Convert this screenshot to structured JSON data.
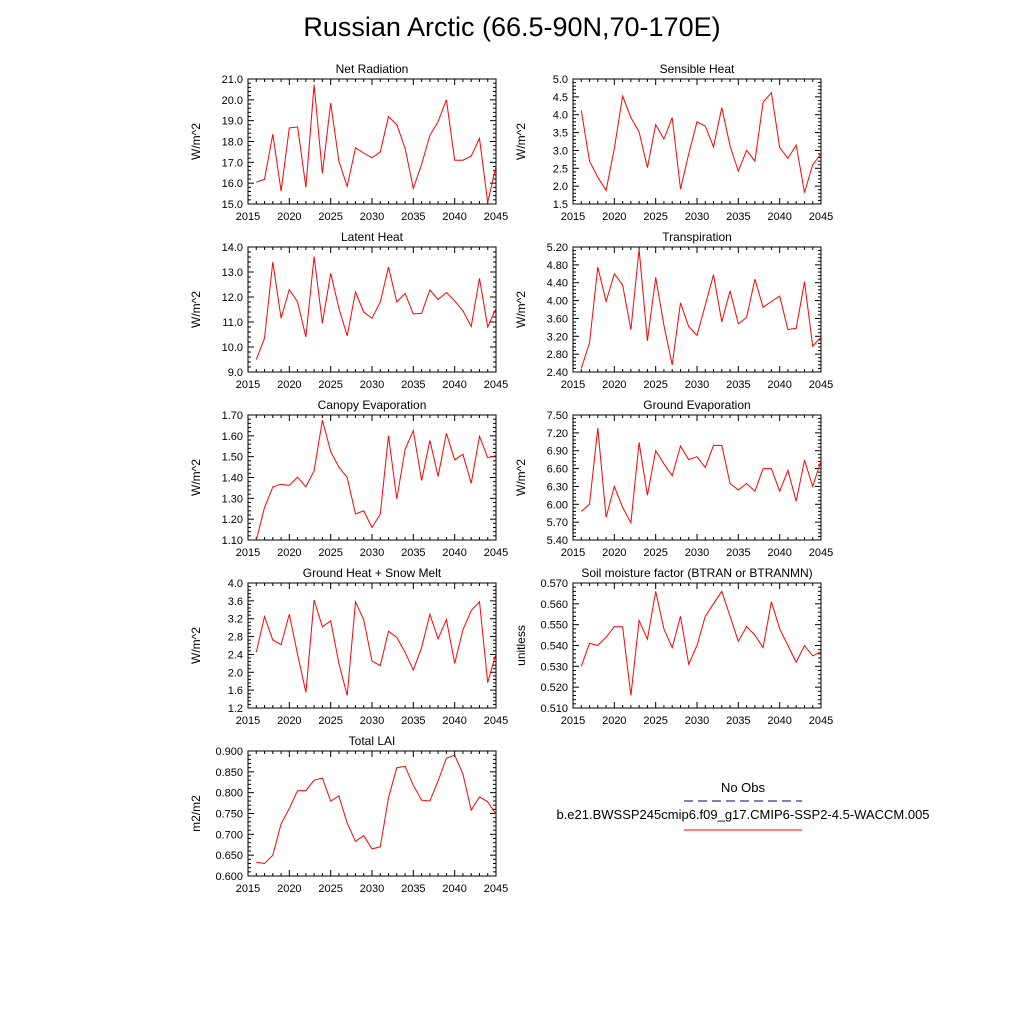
{
  "figure": {
    "title": "Russian Arctic (66.5-90N,70-170E)"
  },
  "legend": {
    "obs_label": "No Obs",
    "model_label": "b.e21.BWSSP245cmip6.f09_g17.CMIP6-SSP2-4.5-WACCM.005",
    "obs_color": "#00007f",
    "model_color": "#ff0000"
  },
  "chart_data": [
    {
      "type": "line",
      "title": "Net Radiation",
      "ylabel": "W/m^2",
      "xlim": [
        2015,
        2045
      ],
      "ylim": [
        15.0,
        21.0
      ],
      "xticks": [
        "2015",
        "2020",
        "2025",
        "2030",
        "2035",
        "2040",
        "2045"
      ],
      "yticks": [
        "15.0",
        "16.0",
        "17.0",
        "18.0",
        "19.0",
        "20.0",
        "21.0"
      ],
      "x": [
        2016,
        2017,
        2018,
        2019,
        2020,
        2021,
        2022,
        2023,
        2024,
        2025,
        2026,
        2027,
        2028,
        2029,
        2030,
        2031,
        2032,
        2033,
        2034,
        2035,
        2036,
        2037,
        2038,
        2039,
        2040,
        2041,
        2042,
        2043,
        2044,
        2045
      ],
      "series": [
        {
          "color": "#ff0000",
          "values": [
            16.05,
            16.18,
            18.35,
            15.62,
            18.65,
            18.7,
            15.8,
            20.72,
            16.48,
            19.85,
            17.05,
            15.85,
            17.7,
            17.45,
            17.22,
            17.5,
            19.2,
            18.8,
            17.68,
            15.75,
            16.9,
            18.3,
            18.95,
            20.0,
            17.1,
            17.1,
            17.3,
            18.15,
            15.08,
            16.8
          ]
        }
      ]
    },
    {
      "type": "line",
      "title": "Sensible Heat",
      "ylabel": "W/m^2",
      "xlim": [
        2015,
        2045
      ],
      "ylim": [
        1.5,
        5.0
      ],
      "xticks": [
        "2015",
        "2020",
        "2025",
        "2030",
        "2035",
        "2040",
        "2045"
      ],
      "yticks": [
        "1.5",
        "2.0",
        "2.5",
        "3.0",
        "3.5",
        "4.0",
        "4.5",
        "5.0"
      ],
      "x": [
        2016,
        2017,
        2018,
        2019,
        2020,
        2021,
        2022,
        2023,
        2024,
        2025,
        2026,
        2027,
        2028,
        2029,
        2030,
        2031,
        2032,
        2033,
        2034,
        2035,
        2036,
        2037,
        2038,
        2039,
        2040,
        2041,
        2042,
        2043,
        2044,
        2045
      ],
      "series": [
        {
          "color": "#ff0000",
          "values": [
            4.12,
            2.7,
            2.25,
            1.88,
            3.05,
            4.52,
            3.92,
            3.52,
            2.52,
            3.72,
            3.32,
            3.92,
            1.92,
            2.9,
            3.8,
            3.68,
            3.1,
            4.2,
            3.12,
            2.42,
            3.0,
            2.7,
            4.35,
            4.62,
            3.08,
            2.78,
            3.15,
            1.82,
            2.6,
            2.9
          ]
        }
      ]
    },
    {
      "type": "line",
      "title": "Latent Heat",
      "ylabel": "W/m^2",
      "xlim": [
        2015,
        2045
      ],
      "ylim": [
        9.0,
        14.0
      ],
      "xticks": [
        "2015",
        "2020",
        "2025",
        "2030",
        "2035",
        "2040",
        "2045"
      ],
      "yticks": [
        "9.0",
        "10.0",
        "11.0",
        "12.0",
        "13.0",
        "14.0"
      ],
      "x": [
        2016,
        2017,
        2018,
        2019,
        2020,
        2021,
        2022,
        2023,
        2024,
        2025,
        2026,
        2027,
        2028,
        2029,
        2030,
        2031,
        2032,
        2033,
        2034,
        2035,
        2036,
        2037,
        2038,
        2039,
        2040,
        2041,
        2042,
        2043,
        2044,
        2045
      ],
      "series": [
        {
          "color": "#ff0000",
          "values": [
            9.5,
            10.35,
            13.4,
            11.15,
            12.3,
            11.8,
            10.4,
            13.62,
            10.95,
            12.95,
            11.55,
            10.45,
            12.2,
            11.4,
            11.15,
            11.8,
            13.2,
            11.8,
            12.15,
            11.32,
            11.35,
            12.28,
            11.9,
            12.18,
            11.85,
            11.45,
            10.82,
            12.75,
            10.8,
            11.55
          ]
        }
      ]
    },
    {
      "type": "line",
      "title": "Transpiration",
      "ylabel": "W/m^2",
      "xlim": [
        2015,
        2045
      ],
      "ylim": [
        2.4,
        5.2
      ],
      "xticks": [
        "2015",
        "2020",
        "2025",
        "2030",
        "2035",
        "2040",
        "2045"
      ],
      "yticks": [
        "2.40",
        "2.80",
        "3.20",
        "3.60",
        "4.00",
        "4.40",
        "4.80",
        "5.20"
      ],
      "x": [
        2016,
        2017,
        2018,
        2019,
        2020,
        2021,
        2022,
        2023,
        2024,
        2025,
        2026,
        2027,
        2028,
        2029,
        2030,
        2031,
        2032,
        2033,
        2034,
        2035,
        2036,
        2037,
        2038,
        2039,
        2040,
        2041,
        2042,
        2043,
        2044,
        2045
      ],
      "series": [
        {
          "color": "#ff0000",
          "values": [
            2.48,
            3.05,
            4.75,
            3.98,
            4.6,
            4.35,
            3.35,
            5.15,
            3.1,
            4.52,
            3.45,
            2.56,
            3.95,
            3.42,
            3.22,
            3.9,
            4.58,
            3.52,
            4.22,
            3.48,
            3.62,
            4.48,
            3.85,
            3.98,
            4.1,
            3.35,
            3.38,
            4.42,
            2.98,
            3.18
          ]
        }
      ]
    },
    {
      "type": "line",
      "title": "Canopy Evaporation",
      "ylabel": "W/m^2",
      "xlim": [
        2015,
        2045
      ],
      "ylim": [
        1.1,
        1.7
      ],
      "xticks": [
        "2015",
        "2020",
        "2025",
        "2030",
        "2035",
        "2040",
        "2045"
      ],
      "yticks": [
        "1.10",
        "1.20",
        "1.30",
        "1.40",
        "1.50",
        "1.60",
        "1.70"
      ],
      "x": [
        2016,
        2017,
        2018,
        2019,
        2020,
        2021,
        2022,
        2023,
        2024,
        2025,
        2026,
        2027,
        2028,
        2029,
        2030,
        2031,
        2032,
        2033,
        2034,
        2035,
        2036,
        2037,
        2038,
        2039,
        2040,
        2041,
        2042,
        2043,
        2044,
        2045
      ],
      "series": [
        {
          "color": "#ff0000",
          "values": [
            1.1,
            1.255,
            1.355,
            1.368,
            1.362,
            1.402,
            1.355,
            1.432,
            1.675,
            1.525,
            1.45,
            1.4,
            1.225,
            1.24,
            1.16,
            1.225,
            1.6,
            1.298,
            1.535,
            1.625,
            1.385,
            1.578,
            1.405,
            1.612,
            1.485,
            1.512,
            1.372,
            1.598,
            1.495,
            1.505
          ]
        }
      ]
    },
    {
      "type": "line",
      "title": "Ground Evaporation",
      "ylabel": "W/m^2",
      "xlim": [
        2015,
        2045
      ],
      "ylim": [
        5.4,
        7.5
      ],
      "xticks": [
        "2015",
        "2020",
        "2025",
        "2030",
        "2035",
        "2040",
        "2045"
      ],
      "yticks": [
        "5.40",
        "5.70",
        "6.00",
        "6.30",
        "6.60",
        "6.90",
        "7.20",
        "7.50"
      ],
      "x": [
        2016,
        2017,
        2018,
        2019,
        2020,
        2021,
        2022,
        2023,
        2024,
        2025,
        2026,
        2027,
        2028,
        2029,
        2030,
        2031,
        2032,
        2033,
        2034,
        2035,
        2036,
        2037,
        2038,
        2039,
        2040,
        2041,
        2042,
        2043,
        2044,
        2045
      ],
      "series": [
        {
          "color": "#ff0000",
          "values": [
            5.88,
            6.0,
            7.28,
            5.78,
            6.3,
            5.95,
            5.69,
            7.04,
            6.15,
            6.9,
            6.68,
            6.48,
            6.98,
            6.75,
            6.8,
            6.62,
            6.99,
            6.99,
            6.35,
            6.24,
            6.35,
            6.22,
            6.6,
            6.6,
            6.22,
            6.57,
            6.05,
            6.74,
            6.3,
            6.73
          ]
        }
      ]
    },
    {
      "type": "line",
      "title": "Ground Heat + Snow Melt",
      "ylabel": "W/m^2",
      "xlim": [
        2015,
        2045
      ],
      "ylim": [
        1.2,
        4.0
      ],
      "xticks": [
        "2015",
        "2020",
        "2025",
        "2030",
        "2035",
        "2040",
        "2045"
      ],
      "yticks": [
        "1.2",
        "1.6",
        "2.0",
        "2.4",
        "2.8",
        "3.2",
        "3.6",
        "4.0"
      ],
      "x": [
        2016,
        2017,
        2018,
        2019,
        2020,
        2021,
        2022,
        2023,
        2024,
        2025,
        2026,
        2027,
        2028,
        2029,
        2030,
        2031,
        2032,
        2033,
        2034,
        2035,
        2036,
        2037,
        2038,
        2039,
        2040,
        2041,
        2042,
        2043,
        2044,
        2045
      ],
      "series": [
        {
          "color": "#ff0000",
          "values": [
            2.45,
            3.25,
            2.72,
            2.62,
            3.3,
            2.4,
            1.55,
            3.62,
            3.02,
            3.15,
            2.2,
            1.48,
            3.58,
            3.18,
            2.25,
            2.15,
            2.92,
            2.78,
            2.45,
            2.05,
            2.55,
            3.3,
            2.75,
            3.18,
            2.2,
            2.95,
            3.38,
            3.58,
            1.77,
            2.42
          ]
        }
      ]
    },
    {
      "type": "line",
      "title": "Soil moisture factor (BTRAN or BTRANMN)",
      "ylabel": "unitless",
      "xlim": [
        2015,
        2045
      ],
      "ylim": [
        0.51,
        0.57
      ],
      "xticks": [
        "2015",
        "2020",
        "2025",
        "2030",
        "2035",
        "2040",
        "2045"
      ],
      "yticks": [
        "0.510",
        "0.520",
        "0.530",
        "0.540",
        "0.550",
        "0.560",
        "0.570"
      ],
      "x": [
        2016,
        2017,
        2018,
        2019,
        2020,
        2021,
        2022,
        2023,
        2024,
        2025,
        2026,
        2027,
        2028,
        2029,
        2030,
        2031,
        2032,
        2033,
        2034,
        2035,
        2036,
        2037,
        2038,
        2039,
        2040,
        2041,
        2042,
        2043,
        2044,
        2045
      ],
      "series": [
        {
          "color": "#ff0000",
          "values": [
            0.53,
            0.541,
            0.54,
            0.544,
            0.549,
            0.549,
            0.516,
            0.552,
            0.543,
            0.566,
            0.548,
            0.539,
            0.554,
            0.531,
            0.54,
            0.554,
            0.56,
            0.566,
            0.554,
            0.542,
            0.549,
            0.545,
            0.539,
            0.561,
            0.548,
            0.54,
            0.532,
            0.54,
            0.535,
            0.537
          ]
        }
      ]
    },
    {
      "type": "line",
      "title": "Total LAI",
      "ylabel": "m2/m2",
      "xlim": [
        2015,
        2045
      ],
      "ylim": [
        0.6,
        0.9
      ],
      "xticks": [
        "2015",
        "2020",
        "2025",
        "2030",
        "2035",
        "2040",
        "2045"
      ],
      "yticks": [
        "0.600",
        "0.650",
        "0.700",
        "0.750",
        "0.800",
        "0.850",
        "0.900"
      ],
      "x": [
        2016,
        2017,
        2018,
        2019,
        2020,
        2021,
        2022,
        2023,
        2024,
        2025,
        2026,
        2027,
        2028,
        2029,
        2030,
        2031,
        2032,
        2033,
        2034,
        2035,
        2036,
        2037,
        2038,
        2039,
        2040,
        2041,
        2042,
        2043,
        2044,
        2045
      ],
      "series": [
        {
          "color": "#ff0000",
          "values": [
            0.633,
            0.63,
            0.65,
            0.725,
            0.762,
            0.805,
            0.805,
            0.83,
            0.835,
            0.78,
            0.792,
            0.727,
            0.683,
            0.697,
            0.665,
            0.67,
            0.788,
            0.86,
            0.863,
            0.818,
            0.782,
            0.78,
            0.828,
            0.883,
            0.89,
            0.845,
            0.758,
            0.79,
            0.778,
            0.748
          ]
        }
      ]
    }
  ]
}
